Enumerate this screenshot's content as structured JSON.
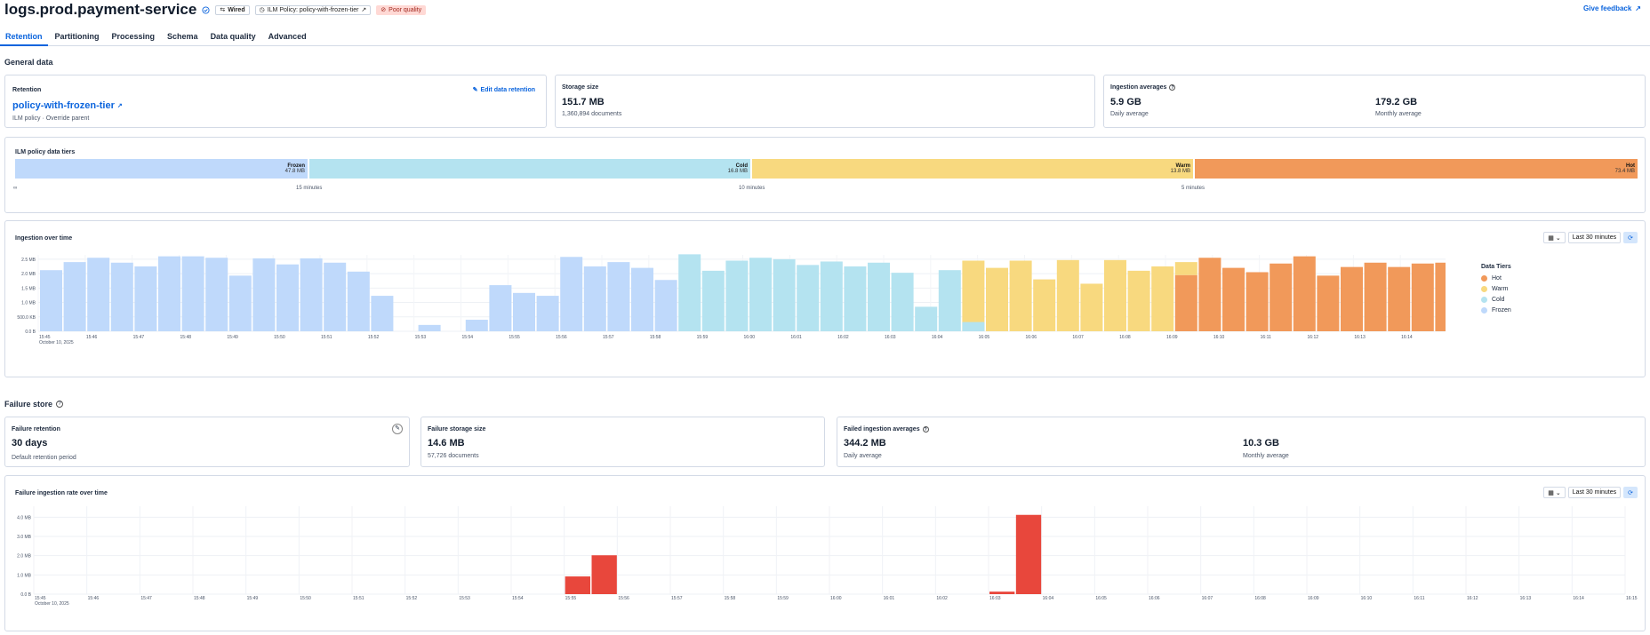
{
  "header": {
    "title": "logs.prod.payment-service",
    "badges": {
      "wired": "Wired",
      "ilm": "ILM Policy: policy-with-frozen-tier",
      "quality": "Poor quality"
    },
    "feedback": "Give feedback"
  },
  "tabs": [
    "Retention",
    "Partitioning",
    "Processing",
    "Schema",
    "Data quality",
    "Advanced"
  ],
  "general": {
    "section_title": "General data",
    "retention": {
      "label": "Retention",
      "edit": "Edit data retention",
      "policy": "policy-with-frozen-tier",
      "meta": "ILM policy · Override parent"
    },
    "storage": {
      "label": "Storage size",
      "value": "151.7 MB",
      "docs": "1,360,894 documents"
    },
    "ingestion": {
      "label": "Ingestion averages",
      "daily_value": "5.9 GB",
      "daily_label": "Daily average",
      "monthly_value": "179.2 GB",
      "monthly_label": "Monthly average"
    }
  },
  "ilm": {
    "label": "ILM policy data tiers",
    "tiers": [
      {
        "name": "Frozen",
        "size": "47.8 MB"
      },
      {
        "name": "Cold",
        "size": "16.8 MB"
      },
      {
        "name": "Warm",
        "size": "13.8 MB"
      },
      {
        "name": "Hot",
        "size": "73.4 MB"
      }
    ],
    "ticks": {
      "start": "∞",
      "t15": "15 minutes",
      "t10": "10 minutes",
      "t5": "5 minutes"
    }
  },
  "ingestion_chart": {
    "label": "Ingestion over time",
    "range": "Last 30 minutes",
    "legend_title": "Data Tiers",
    "legend": [
      "Hot",
      "Warm",
      "Cold",
      "Frozen"
    ],
    "date_label": "October 10, 2025"
  },
  "failure": {
    "section_title": "Failure store",
    "retention": {
      "label": "Failure retention",
      "value": "30 days",
      "sub": "Default retention period"
    },
    "storage": {
      "label": "Failure storage size",
      "value": "14.6 MB",
      "docs": "57,726 documents"
    },
    "ingestion": {
      "label": "Failed ingestion averages",
      "daily_value": "344.2 MB",
      "daily_label": "Daily average",
      "monthly_value": "10.3 GB",
      "monthly_label": "Monthly average"
    },
    "chart_label": "Failure ingestion rate over time",
    "range": "Last 30 minutes",
    "date_label": "October 10, 2025"
  },
  "colors": {
    "hot": "#f1995a",
    "warm": "#f8d97f",
    "cold": "#b4e3f0",
    "frozen": "#bfd9fb",
    "failure": "#e8473c",
    "accent": "#0b64dd"
  },
  "chart_data": [
    {
      "type": "bar",
      "title": "Ingestion over time",
      "ylabel": "",
      "y_ticks": [
        "0.0 B",
        "500.0 KB",
        "1.0 MB",
        "1.5 MB",
        "2.0 MB",
        "2.5 MB"
      ],
      "ylim_mb": [
        0,
        2.65
      ],
      "x_ticks": [
        "15:45",
        "15:46",
        "15:47",
        "15:48",
        "15:49",
        "15:50",
        "15:51",
        "15:52",
        "15:53",
        "15:54",
        "15:55",
        "15:56",
        "15:57",
        "15:58",
        "15:59",
        "16:00",
        "16:01",
        "16:02",
        "16:03",
        "16:04",
        "16:05",
        "16:06",
        "16:07",
        "16:08",
        "16:09",
        "16:10",
        "16:11",
        "16:12",
        "16:13",
        "16:14",
        "16:15"
      ],
      "bars": [
        {
          "t": "frozen",
          "v": 2.12
        },
        {
          "t": "frozen",
          "v": 2.4
        },
        {
          "t": "frozen",
          "v": 2.55
        },
        {
          "t": "frozen",
          "v": 2.38
        },
        {
          "t": "frozen",
          "v": 2.25
        },
        {
          "t": "frozen",
          "v": 2.6
        },
        {
          "t": "frozen",
          "v": 2.6
        },
        {
          "t": "frozen",
          "v": 2.55
        },
        {
          "t": "frozen",
          "v": 1.93
        },
        {
          "t": "frozen",
          "v": 2.53
        },
        {
          "t": "frozen",
          "v": 2.32
        },
        {
          "t": "frozen",
          "v": 2.53
        },
        {
          "t": "frozen",
          "v": 2.38
        },
        {
          "t": "frozen",
          "v": 2.07
        },
        {
          "t": "frozen",
          "v": 1.23
        },
        {
          "t": "frozen",
          "v": 0
        },
        {
          "t": "frozen",
          "v": 0.22
        },
        {
          "t": "frozen",
          "v": 0
        },
        {
          "t": "frozen",
          "v": 0.4
        },
        {
          "t": "frozen",
          "v": 1.6
        },
        {
          "t": "frozen",
          "v": 1.33
        },
        {
          "t": "frozen",
          "v": 1.23
        },
        {
          "t": "frozen",
          "v": 2.58
        },
        {
          "t": "frozen",
          "v": 2.25
        },
        {
          "t": "frozen",
          "v": 2.4
        },
        {
          "t": "frozen",
          "v": 2.2
        },
        {
          "t": "frozen",
          "v": 1.78
        },
        {
          "t": "cold",
          "v": 2.67
        },
        {
          "t": "cold",
          "v": 2.1
        },
        {
          "t": "cold",
          "v": 2.45
        },
        {
          "t": "cold",
          "v": 2.55
        },
        {
          "t": "cold",
          "v": 2.5
        },
        {
          "t": "cold",
          "v": 2.3
        },
        {
          "t": "cold",
          "v": 2.42
        },
        {
          "t": "cold",
          "v": 2.25
        },
        {
          "t": "cold",
          "v": 2.38
        },
        {
          "t": "cold",
          "v": 2.03
        },
        {
          "t": "cold",
          "v": 0.85
        },
        {
          "t": "cold",
          "v": 2.12
        },
        {
          "t": "warm",
          "v": 2.45,
          "c": 0.32
        },
        {
          "t": "warm",
          "v": 2.2
        },
        {
          "t": "warm",
          "v": 2.45
        },
        {
          "t": "warm",
          "v": 1.8
        },
        {
          "t": "warm",
          "v": 2.47
        },
        {
          "t": "warm",
          "v": 1.65
        },
        {
          "t": "warm",
          "v": 2.47
        },
        {
          "t": "warm",
          "v": 2.1
        },
        {
          "t": "warm",
          "v": 2.25
        },
        {
          "t": "hot",
          "v": 1.95,
          "w": 0.45
        },
        {
          "t": "hot",
          "v": 2.55
        },
        {
          "t": "hot",
          "v": 2.2
        },
        {
          "t": "hot",
          "v": 2.05
        },
        {
          "t": "hot",
          "v": 2.35
        },
        {
          "t": "hot",
          "v": 2.6
        },
        {
          "t": "hot",
          "v": 1.93
        },
        {
          "t": "hot",
          "v": 2.23
        },
        {
          "t": "hot",
          "v": 2.38
        },
        {
          "t": "hot",
          "v": 2.23
        },
        {
          "t": "hot",
          "v": 2.35
        },
        {
          "t": "hot",
          "v": 2.38
        }
      ]
    },
    {
      "type": "bar",
      "title": "Failure ingestion rate over time",
      "y_ticks": [
        "0.0 B",
        "1.0 MB",
        "2.0 MB",
        "3.0 MB",
        "4.0 MB"
      ],
      "ylim_mb": [
        0,
        4.2
      ],
      "x_ticks": [
        "15:45",
        "15:46",
        "15:47",
        "15:48",
        "15:49",
        "15:50",
        "15:51",
        "15:52",
        "15:53",
        "15:54",
        "15:55",
        "15:56",
        "15:57",
        "15:58",
        "15:59",
        "16:00",
        "16:01",
        "16:02",
        "16:03",
        "16:04",
        "16:05",
        "16:06",
        "16:07",
        "16:08",
        "16:09",
        "16:10",
        "16:11",
        "16:12",
        "16:13",
        "16:14",
        "16:15"
      ],
      "bars": [
        {
          "slot": 20,
          "v": 0.92
        },
        {
          "slot": 21,
          "v": 2.02
        },
        {
          "slot": 36,
          "v": 0.13
        },
        {
          "slot": 37,
          "v": 4.12
        }
      ]
    }
  ]
}
